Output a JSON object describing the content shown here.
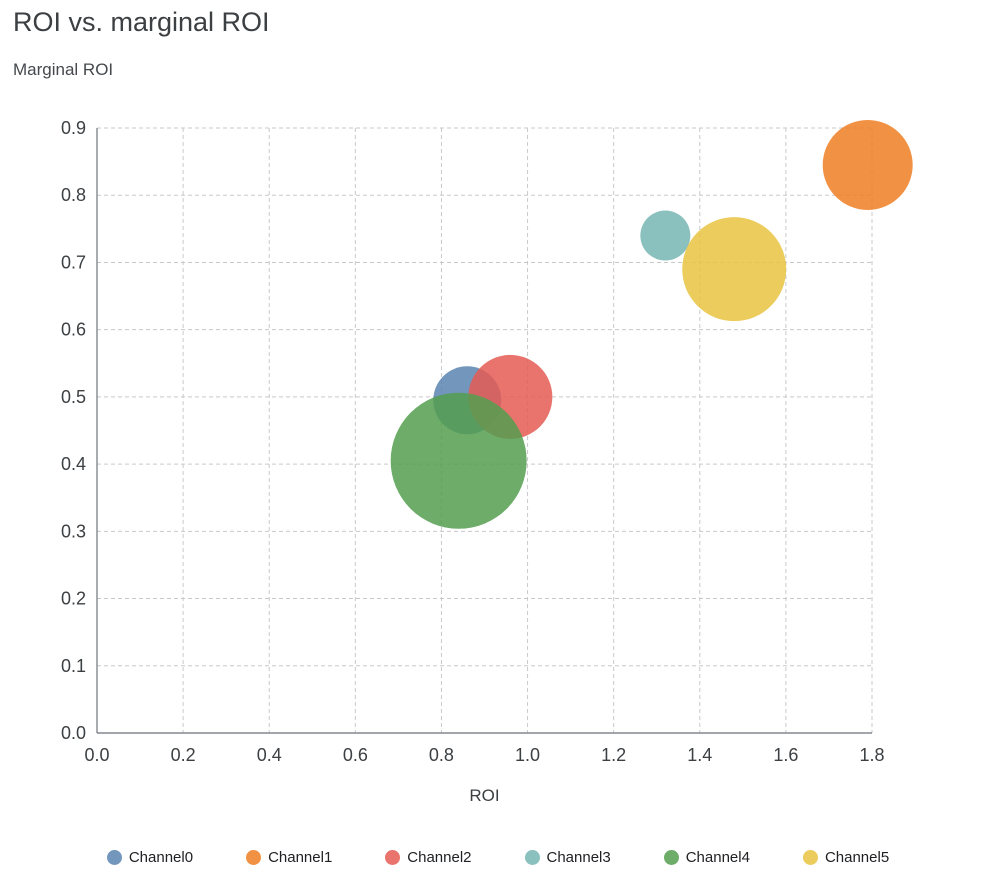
{
  "chart_data": {
    "type": "scatter",
    "title": "ROI vs. marginal ROI",
    "xlabel": "ROI",
    "ylabel": "Marginal ROI",
    "xlim": [
      0.0,
      1.8
    ],
    "ylim": [
      0.0,
      0.9
    ],
    "grid": true,
    "grid_style": "dashed",
    "legend_position": "bottom",
    "bubble_opacity": 0.85,
    "x_ticks": [
      {
        "v": 0.0,
        "label": "0.0"
      },
      {
        "v": 0.2,
        "label": "0.2"
      },
      {
        "v": 0.4,
        "label": "0.4"
      },
      {
        "v": 0.6,
        "label": "0.6"
      },
      {
        "v": 0.8,
        "label": "0.8"
      },
      {
        "v": 1.0,
        "label": "1.0"
      },
      {
        "v": 1.2,
        "label": "1.2"
      },
      {
        "v": 1.4,
        "label": "1.4"
      },
      {
        "v": 1.6,
        "label": "1.6"
      },
      {
        "v": 1.8,
        "label": "1.8"
      }
    ],
    "y_ticks": [
      {
        "v": 0.0,
        "label": "0.0"
      },
      {
        "v": 0.1,
        "label": "0.1"
      },
      {
        "v": 0.2,
        "label": "0.2"
      },
      {
        "v": 0.3,
        "label": "0.3"
      },
      {
        "v": 0.4,
        "label": "0.4"
      },
      {
        "v": 0.5,
        "label": "0.5"
      },
      {
        "v": 0.6,
        "label": "0.6"
      },
      {
        "v": 0.7,
        "label": "0.7"
      },
      {
        "v": 0.8,
        "label": "0.8"
      },
      {
        "v": 0.9,
        "label": "0.9"
      }
    ],
    "series": [
      {
        "name": "Channel0",
        "x": 0.86,
        "y": 0.495,
        "radius_px": 34,
        "color": "#5B84B1"
      },
      {
        "name": "Channel1",
        "x": 1.79,
        "y": 0.845,
        "radius_px": 45,
        "color": "#EF7E22"
      },
      {
        "name": "Channel2",
        "x": 0.96,
        "y": 0.5,
        "radius_px": 42,
        "color": "#E55C54"
      },
      {
        "name": "Channel3",
        "x": 1.32,
        "y": 0.74,
        "radius_px": 25,
        "color": "#76B5B1"
      },
      {
        "name": "Channel4",
        "x": 0.84,
        "y": 0.405,
        "radius_px": 68,
        "color": "#549E4F"
      },
      {
        "name": "Channel5",
        "x": 1.48,
        "y": 0.69,
        "radius_px": 52,
        "color": "#E7C33F"
      }
    ]
  }
}
